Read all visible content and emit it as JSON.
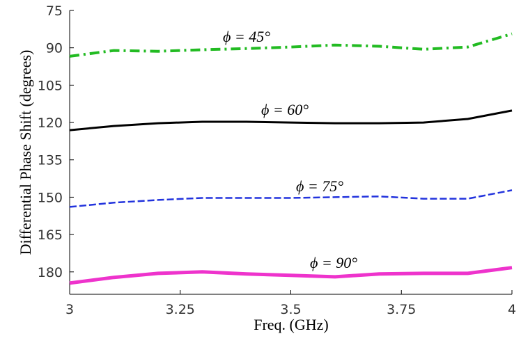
{
  "chart_data": {
    "type": "line",
    "x_label": "Freq. (GHz)",
    "y_label": "Differential Phase Shift (degrees)",
    "x": [
      3,
      3.1,
      3.2,
      3.3,
      3.4,
      3.5,
      3.6,
      3.7,
      3.8,
      3.9,
      4
    ],
    "series": [
      {
        "name": "ϕ = 45°",
        "color": "#22bb22",
        "style": "dashdot",
        "values": [
          93.4,
          91.1,
          91.4,
          90.8,
          90.3,
          89.7,
          88.9,
          89.4,
          90.6,
          89.7,
          84.4
        ]
      },
      {
        "name": "ϕ = 60°",
        "color": "#000000",
        "style": "solid",
        "values": [
          123.1,
          121.4,
          120.3,
          119.7,
          119.7,
          120,
          120.3,
          120.3,
          120,
          118.6,
          115.2
        ]
      },
      {
        "name": "ϕ = 75°",
        "color": "#2233dd",
        "style": "dashed",
        "values": [
          153.9,
          152.2,
          151.1,
          150.3,
          150.3,
          150.3,
          150,
          149.7,
          150.6,
          150.6,
          147.2
        ]
      },
      {
        "name": "ϕ = 90°",
        "color": "#ee33cc",
        "style": "thick",
        "values": [
          184.5,
          182.2,
          180.6,
          180,
          180.8,
          181.4,
          182,
          180.8,
          180.6,
          180.6,
          178.3
        ]
      }
    ],
    "xlim": [
      3,
      4
    ],
    "xticks": [
      3,
      3.25,
      3.5,
      3.75,
      4
    ],
    "ylim": [
      75,
      189
    ],
    "yticks": [
      75,
      90,
      105,
      120,
      135,
      150,
      165,
      180
    ],
    "y_reversed": true,
    "grid": false
  }
}
